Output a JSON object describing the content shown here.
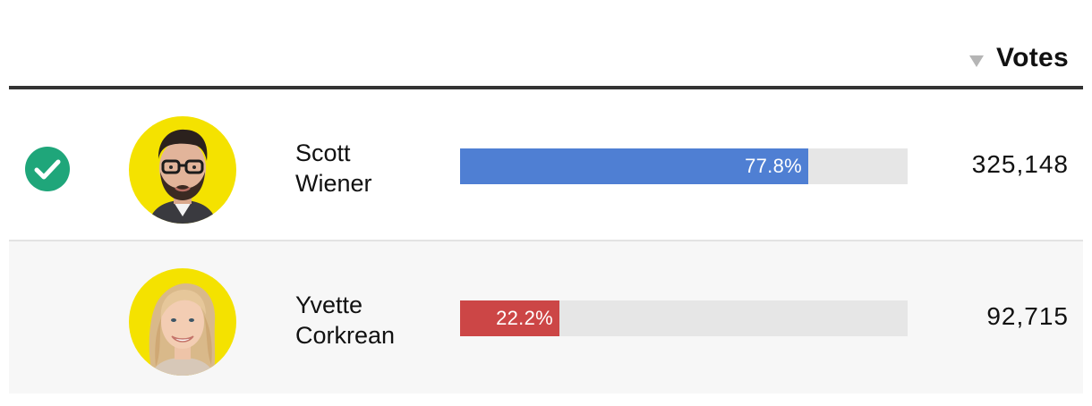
{
  "header": {
    "votes_label": "Votes",
    "sort_icon": "sort-descending-icon"
  },
  "candidates": [
    {
      "name_first": "Scott",
      "name_last": "Wiener",
      "percent": 77.8,
      "percent_label": "77.8%",
      "votes": "325,148",
      "winner": true,
      "bar_color": "#4f7fd3",
      "avatar_bg": "#f4e200",
      "avatar_icon": "candidate-photo"
    },
    {
      "name_first": "Yvette",
      "name_last": "Corkrean",
      "percent": 22.2,
      "percent_label": "22.2%",
      "votes": "92,715",
      "winner": false,
      "bar_color": "#cc4646",
      "avatar_bg": "#f4e200",
      "avatar_icon": "candidate-photo"
    }
  ],
  "colors": {
    "winner_check": "#1fa67a",
    "bar_track": "#e6e6e6",
    "header_rule": "#333333"
  }
}
